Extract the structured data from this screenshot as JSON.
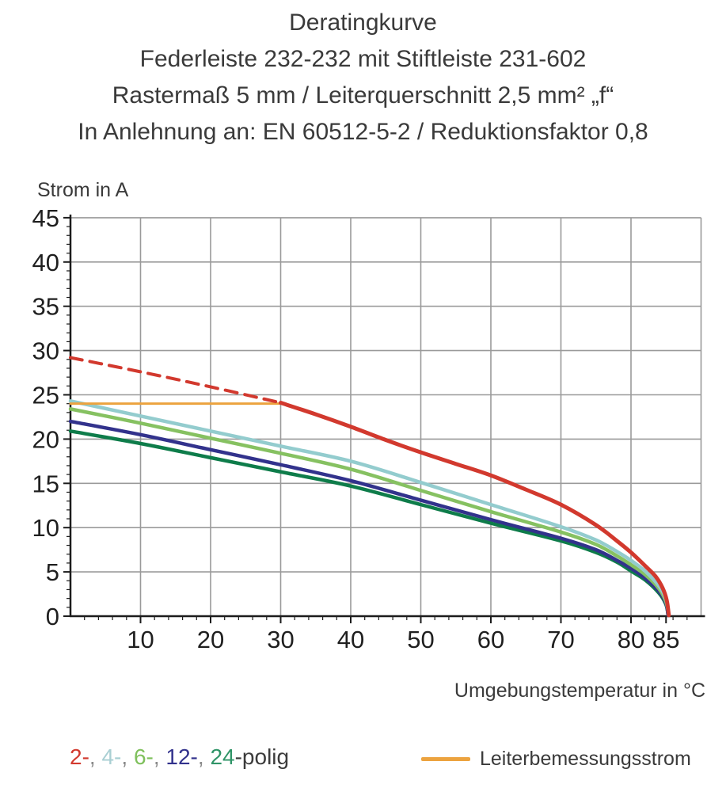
{
  "title": {
    "lines": [
      "Deratingkurve",
      "Federleiste 232-232 mit Stiftleiste 231-602",
      "Rastermaß 5 mm / Leiterquerschnitt 2,5 mm² „f“",
      "In Anlehnung an: EN 60512-5-2 / Reduktionsfaktor 0,8"
    ]
  },
  "chart_data": {
    "type": "line",
    "title": "Deratingkurve",
    "xlabel": "Umgebungstemperatur in °C",
    "ylabel": "Strom in A",
    "xlim": [
      0,
      90
    ],
    "ylim": [
      0,
      45
    ],
    "x_major_ticks": [
      10,
      20,
      30,
      40,
      50,
      60,
      70,
      80,
      85
    ],
    "x_tick_labels": [
      "10",
      "20",
      "30",
      "40",
      "50",
      "60",
      "70",
      "80",
      "85"
    ],
    "y_major_ticks": [
      0,
      5,
      10,
      15,
      20,
      25,
      30,
      35,
      40,
      45
    ],
    "x_minor_step": 2,
    "y_minor_step": 1,
    "grid": {
      "x_step": 10,
      "y_step": 5,
      "color": "#9a9a9a",
      "on": true
    },
    "axis_color": "#1c1c1c",
    "series": [
      {
        "name": "24-polig",
        "color": "#0e7c4a",
        "style": "solid",
        "width": 4.5,
        "points": [
          [
            0,
            20.9
          ],
          [
            10,
            19.5
          ],
          [
            20,
            17.9
          ],
          [
            30,
            16.3
          ],
          [
            40,
            14.7
          ],
          [
            50,
            12.6
          ],
          [
            60,
            10.5
          ],
          [
            70,
            8.5
          ],
          [
            75,
            7.2
          ],
          [
            78,
            6.1
          ],
          [
            80,
            5.1
          ],
          [
            82,
            4.1
          ],
          [
            84,
            2.6
          ],
          [
            85,
            1.3
          ],
          [
            85.3,
            0.1
          ]
        ]
      },
      {
        "name": "12-polig",
        "color": "#32328c",
        "style": "solid",
        "width": 4.5,
        "points": [
          [
            0,
            22.0
          ],
          [
            10,
            20.5
          ],
          [
            20,
            18.8
          ],
          [
            30,
            17.1
          ],
          [
            40,
            15.3
          ],
          [
            50,
            13.1
          ],
          [
            60,
            10.9
          ],
          [
            70,
            8.8
          ],
          [
            75,
            7.5
          ],
          [
            78,
            6.3
          ],
          [
            80,
            5.4
          ],
          [
            82,
            4.3
          ],
          [
            84,
            2.8
          ],
          [
            85,
            1.4
          ],
          [
            85.3,
            0.1
          ]
        ]
      },
      {
        "name": "6-polig",
        "color": "#86c161",
        "style": "solid",
        "width": 4.5,
        "points": [
          [
            0,
            23.4
          ],
          [
            10,
            21.8
          ],
          [
            20,
            20.1
          ],
          [
            30,
            18.4
          ],
          [
            40,
            16.6
          ],
          [
            50,
            14.2
          ],
          [
            60,
            11.8
          ],
          [
            70,
            9.5
          ],
          [
            75,
            8.1
          ],
          [
            78,
            6.8
          ],
          [
            80,
            5.8
          ],
          [
            82,
            4.7
          ],
          [
            84,
            3.1
          ],
          [
            85,
            1.6
          ],
          [
            85.4,
            0.1
          ]
        ]
      },
      {
        "name": "4-polig",
        "color": "#93ccce",
        "style": "solid",
        "width": 4.5,
        "points": [
          [
            0,
            24.3
          ],
          [
            10,
            22.6
          ],
          [
            20,
            20.9
          ],
          [
            30,
            19.2
          ],
          [
            40,
            17.5
          ],
          [
            50,
            15.1
          ],
          [
            60,
            12.6
          ],
          [
            70,
            10.1
          ],
          [
            75,
            8.6
          ],
          [
            78,
            7.3
          ],
          [
            80,
            6.3
          ],
          [
            82,
            5.1
          ],
          [
            84,
            3.4
          ],
          [
            85,
            1.9
          ],
          [
            85.4,
            0.1
          ]
        ]
      },
      {
        "name": "Leiterbemessungsstrom",
        "color": "#eca33f",
        "style": "solid",
        "width": 3,
        "points": [
          [
            0,
            24
          ],
          [
            30,
            24
          ]
        ]
      },
      {
        "name": "2-polig (oberhalb Leiterbemessungsstrom)",
        "color": "#d2392e",
        "style": "dashed",
        "width": 4,
        "points": [
          [
            0,
            29.2
          ],
          [
            10,
            27.6
          ],
          [
            20,
            25.9
          ],
          [
            30,
            24.1
          ]
        ]
      },
      {
        "name": "2-polig",
        "color": "#d2392e",
        "style": "solid",
        "width": 5,
        "points": [
          [
            30,
            24.1
          ],
          [
            35,
            22.8
          ],
          [
            40,
            21.4
          ],
          [
            45,
            19.9
          ],
          [
            50,
            18.5
          ],
          [
            55,
            17.2
          ],
          [
            60,
            15.9
          ],
          [
            65,
            14.3
          ],
          [
            70,
            12.6
          ],
          [
            75,
            10.3
          ],
          [
            78,
            8.5
          ],
          [
            80,
            7.2
          ],
          [
            82,
            5.7
          ],
          [
            83.5,
            4.5
          ],
          [
            84.5,
            3.2
          ],
          [
            85.1,
            1.8
          ],
          [
            85.4,
            0.1
          ]
        ]
      }
    ]
  },
  "legend": {
    "poles_tokens": [
      {
        "text": "2-",
        "color": "#d2392e"
      },
      {
        "text": ", ",
        "color": "#8a8a8a"
      },
      {
        "text": "4-",
        "color": "#a9cfd3"
      },
      {
        "text": ", ",
        "color": "#8a8a8a"
      },
      {
        "text": "6-",
        "color": "#7fc05c"
      },
      {
        "text": ", ",
        "color": "#8a8a8a"
      },
      {
        "text": "12-",
        "color": "#32328c"
      },
      {
        "text": ", ",
        "color": "#8a8a8a"
      },
      {
        "text": "24",
        "color": "#2f9467"
      },
      {
        "text": "-polig",
        "color": "#3b3b3b"
      }
    ],
    "rated_current": {
      "label": "Leiterbemessungsstrom",
      "color": "#eca33f"
    }
  }
}
